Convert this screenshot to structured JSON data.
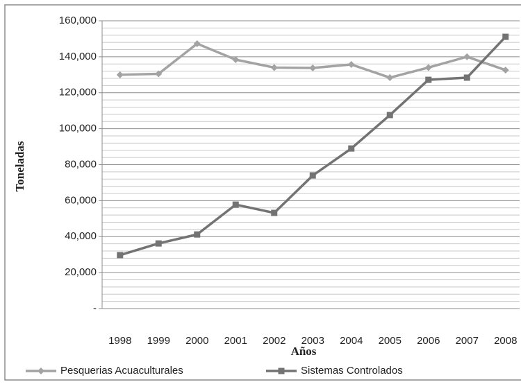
{
  "chart_data": {
    "type": "line",
    "x_label": "Años",
    "y_label": "Toneladas",
    "categories": [
      "1998",
      "1999",
      "2000",
      "2001",
      "2002",
      "2003",
      "2004",
      "2005",
      "2006",
      "2007",
      "2008"
    ],
    "series": [
      {
        "name": "Pesquerias Acuaculturales",
        "color": "#a3a3a3",
        "marker": "diamond",
        "values": [
          130000,
          130500,
          147300,
          138400,
          134000,
          133800,
          135700,
          128400,
          134000,
          140000,
          132600
        ]
      },
      {
        "name": "Sistemas Controlados",
        "color": "#737373",
        "marker": "square",
        "values": [
          29700,
          36200,
          41200,
          57800,
          53200,
          74000,
          89000,
          107600,
          127200,
          128400,
          151100
        ]
      }
    ],
    "ylim": [
      0,
      160000
    ],
    "yticks": [
      {
        "value": 0,
        "label": "-"
      },
      {
        "value": 20000,
        "label": "20,000"
      },
      {
        "value": 40000,
        "label": "40,000"
      },
      {
        "value": 60000,
        "label": "60,000"
      },
      {
        "value": 80000,
        "label": "80,000"
      },
      {
        "value": 100000,
        "label": "100,000"
      },
      {
        "value": 120000,
        "label": "120,000"
      },
      {
        "value": 140000,
        "label": "140,000"
      },
      {
        "value": 160000,
        "label": "160,000"
      }
    ],
    "minor_yticks": [
      4000,
      8000,
      12000,
      16000,
      24000,
      28000,
      32000,
      36000,
      44000,
      48000,
      52000,
      56000,
      64000,
      68000,
      72000,
      76000,
      84000,
      88000,
      92000,
      96000,
      104000,
      108000,
      112000,
      116000,
      124000,
      128000,
      132000,
      136000,
      144000,
      148000,
      152000,
      156000
    ],
    "grid": true,
    "legend": "bottom"
  }
}
